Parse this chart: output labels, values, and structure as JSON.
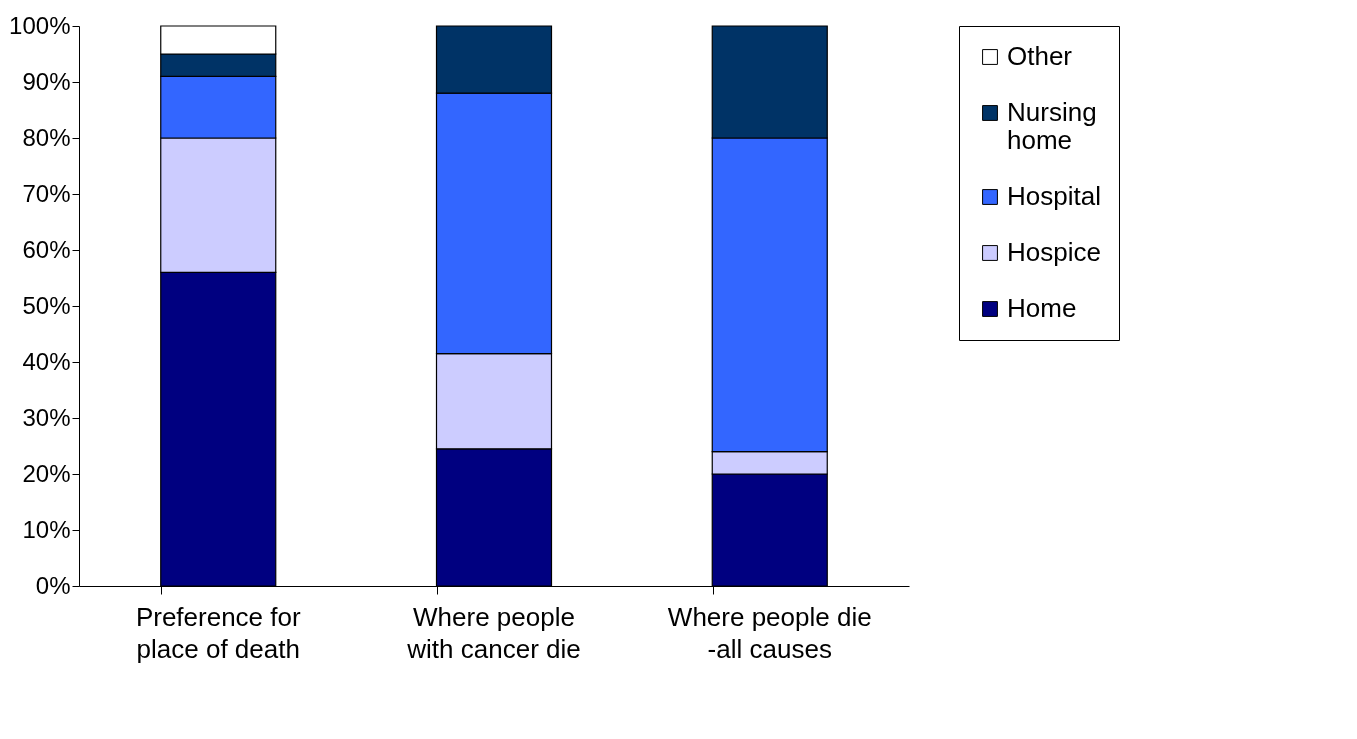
{
  "chart_data": {
    "type": "bar",
    "stacked": true,
    "categories": [
      "Preference for place of death",
      "Where people with cancer die",
      "Where people die -all causes"
    ],
    "series": [
      {
        "name": "Home",
        "color": "#000080",
        "values": [
          56,
          24.5,
          20
        ]
      },
      {
        "name": "Hospice",
        "color": "#ccccff",
        "values": [
          24,
          17,
          4
        ]
      },
      {
        "name": "Hospital",
        "color": "#3366ff",
        "values": [
          11,
          46.5,
          56
        ]
      },
      {
        "name": "Nursing home",
        "color": "#003366",
        "values": [
          4,
          12,
          20
        ]
      },
      {
        "name": "Other",
        "color": "#ffffff",
        "values": [
          5,
          null,
          null
        ]
      }
    ],
    "ylim": [
      0,
      100
    ],
    "yticks": [
      {
        "value": 0,
        "label": "0%"
      },
      {
        "value": 10,
        "label": "10%"
      },
      {
        "value": 20,
        "label": "20%"
      },
      {
        "value": 30,
        "label": "30%"
      },
      {
        "value": 40,
        "label": "40%"
      },
      {
        "value": 50,
        "label": "50%"
      },
      {
        "value": 60,
        "label": "60%"
      },
      {
        "value": 70,
        "label": "70%"
      },
      {
        "value": 80,
        "label": "80%"
      },
      {
        "value": 90,
        "label": "90%"
      },
      {
        "value": 100,
        "label": "100%"
      }
    ],
    "grid": false,
    "legend": "right"
  }
}
